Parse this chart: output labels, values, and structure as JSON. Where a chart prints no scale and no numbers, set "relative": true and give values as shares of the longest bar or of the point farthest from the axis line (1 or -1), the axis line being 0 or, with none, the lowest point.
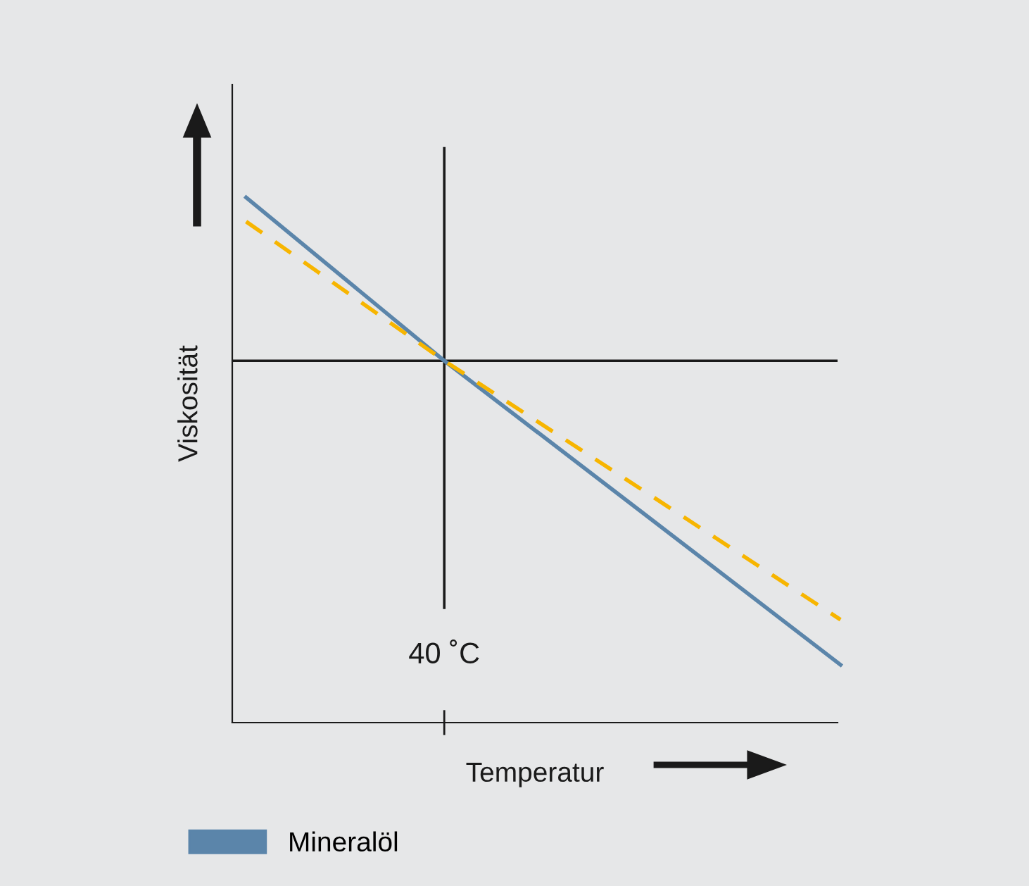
{
  "chart_data": {
    "type": "line",
    "relative": true,
    "xlabel": "Temperatur",
    "ylabel": "Viskosität",
    "categories": [
      null,
      null,
      null,
      null
    ],
    "series": [
      {
        "name": "Mineralöl",
        "color": "#5b85aa",
        "values": [
          1,
          0.689,
          0.4,
          0.11
        ],
        "line_style": "solid"
      },
      {
        "color": "#f7b500",
        "values": [
          0.954,
          0.689,
          0.443,
          0.196
        ],
        "line_style": "dashed"
      }
    ],
    "ref_lines": [
      {
        "axis": "y",
        "value": 0.689,
        "color": "#1a1a1a"
      }
    ],
    "annotations": [
      "40 ˚C"
    ],
    "legend": "bottom"
  }
}
